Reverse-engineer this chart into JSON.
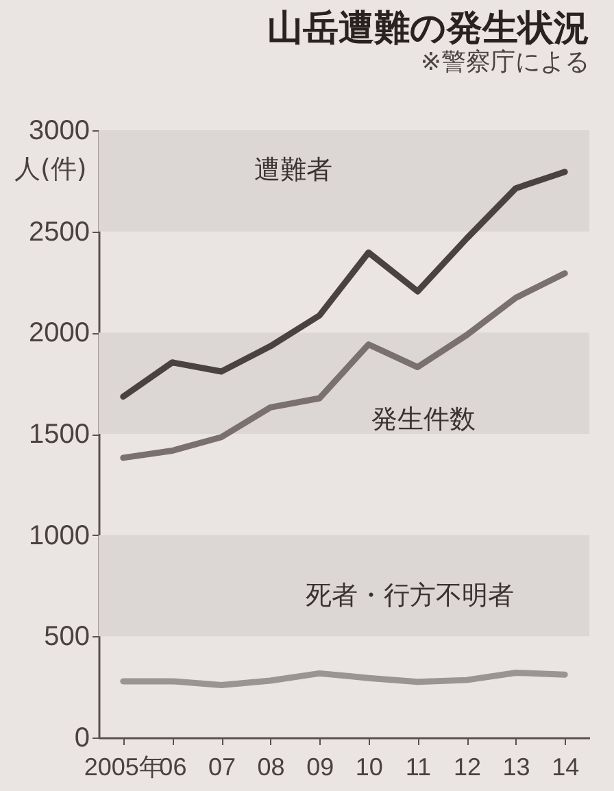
{
  "chart_data": {
    "type": "line",
    "title": "山岳遭難の発生状況",
    "annotations": [
      "※警察庁による"
    ],
    "ylabel": "人(件)",
    "categories": [
      "2005年",
      "06",
      "07",
      "08",
      "09",
      "10",
      "11",
      "12",
      "13",
      "14"
    ],
    "series": [
      {
        "name": "遭難者",
        "color": "#4a4242",
        "values": [
          1684,
          1853,
          1808,
          1933,
          2085,
          2396,
          2204,
          2465,
          2713,
          2794
        ]
      },
      {
        "name": "発生件数",
        "color": "#7a7070",
        "values": [
          1382,
          1417,
          1484,
          1631,
          1676,
          1942,
          1830,
          1988,
          2172,
          2293
        ]
      },
      {
        "name": "死者・行方不明者",
        "color": "#9a9494",
        "values": [
          278,
          278,
          259,
          281,
          317,
          294,
          275,
          284,
          320,
          311
        ]
      }
    ],
    "ylim": [
      0,
      3000
    ],
    "yticks": [
      0,
      500,
      1000,
      1500,
      2000,
      2500,
      3000
    ],
    "bands": [
      {
        "axis": "y",
        "from": 500,
        "to": 1000,
        "color": "#dcd6d4"
      },
      {
        "axis": "y",
        "from": 1500,
        "to": 2000,
        "color": "#dcd6d4"
      },
      {
        "axis": "y",
        "from": 2500,
        "to": 3000,
        "color": "#dcd6d4"
      }
    ],
    "grid": false,
    "marker": "none",
    "line_style": "solid"
  }
}
